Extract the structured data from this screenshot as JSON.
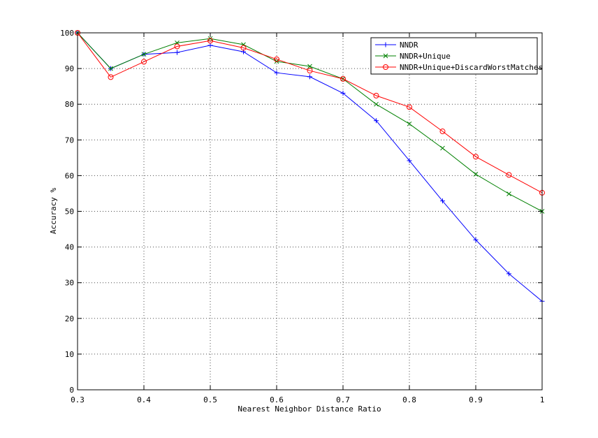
{
  "chart_data": {
    "type": "line",
    "title": "",
    "xlabel": "Nearest Neighbor Distance Ratio",
    "ylabel": "Accuracy %",
    "xlim": [
      0.3,
      1.0
    ],
    "ylim": [
      0,
      100
    ],
    "x": [
      0.3,
      0.35,
      0.4,
      0.45,
      0.5,
      0.55,
      0.6,
      0.65,
      0.7,
      0.75,
      0.8,
      0.85,
      0.9,
      0.95,
      1.0
    ],
    "xticks": [
      0.3,
      0.4,
      0.5,
      0.6,
      0.7,
      0.8,
      0.9,
      1.0
    ],
    "xtick_labels": [
      "0.3",
      "0.4",
      "0.5",
      "0.6",
      "0.7",
      "0.8",
      "0.9",
      "1"
    ],
    "yticks": [
      0,
      10,
      20,
      30,
      40,
      50,
      60,
      70,
      80,
      90,
      100
    ],
    "ytick_labels": [
      "0",
      "10",
      "20",
      "30",
      "40",
      "50",
      "60",
      "70",
      "80",
      "90",
      "100"
    ],
    "grid": true,
    "grid_style": "dotted",
    "legend_position": "top-right",
    "series": [
      {
        "name": "NNDR",
        "color": "#0000ff",
        "marker": "plus",
        "values": [
          100,
          90,
          94,
          94.5,
          96.5,
          94.7,
          88.8,
          87.7,
          83.1,
          75.4,
          64.2,
          52.9,
          42.0,
          32.5,
          24.8
        ]
      },
      {
        "name": "NNDR+Unique",
        "color": "#008000",
        "marker": "cross",
        "values": [
          100,
          90,
          94,
          97.2,
          98.4,
          96.7,
          92.0,
          90.6,
          87.1,
          80.0,
          74.5,
          67.7,
          60.4,
          54.9,
          50.0
        ]
      },
      {
        "name": "NNDR+Unique+DiscardWorstMatches",
        "color": "#ff0000",
        "marker": "circle",
        "values": [
          100,
          87.6,
          91.9,
          96.2,
          97.8,
          95.8,
          92.6,
          89.4,
          87.1,
          82.4,
          79.2,
          72.4,
          65.3,
          60.2,
          55.2
        ]
      }
    ]
  }
}
